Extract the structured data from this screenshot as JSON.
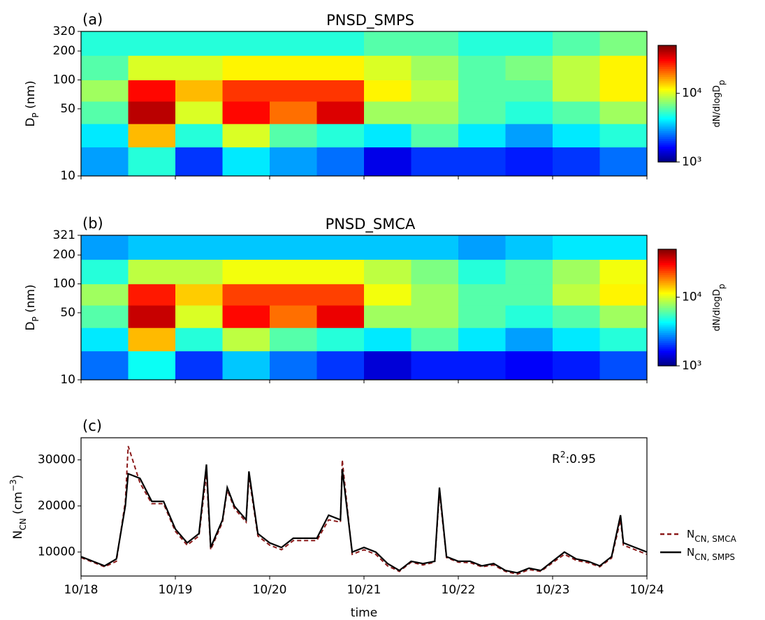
{
  "chart_data": [
    {
      "type": "heatmap",
      "panel_label": "(a)",
      "title": "PNSD_SMPS",
      "ylabel": [
        {
          "text": "D"
        },
        {
          "text": "P",
          "sub": true
        },
        {
          "text": " (nm)"
        }
      ],
      "clabel": [
        {
          "text": "dN/dlogD"
        },
        {
          "text": "p",
          "sub": true
        }
      ],
      "x_edges": [
        18,
        18.5,
        19,
        19.5,
        20,
        20.5,
        21,
        21.5,
        22,
        22.5,
        23,
        23.5,
        24
      ],
      "y_edges": [
        10,
        20,
        35,
        60,
        100,
        180,
        320
      ],
      "values": [
        [
          3000,
          4000,
          6000,
          8000,
          6000,
          5000
        ],
        [
          5000,
          15000,
          40000,
          30000,
          10000,
          5000
        ],
        [
          2000,
          5000,
          10000,
          15000,
          10000,
          5000
        ],
        [
          4000,
          10000,
          30000,
          25000,
          12000,
          5000
        ],
        [
          3000,
          6000,
          20000,
          25000,
          12000,
          5000
        ],
        [
          2500,
          5000,
          35000,
          25000,
          12000,
          5000
        ],
        [
          1500,
          4000,
          8000,
          12000,
          10000,
          6000
        ],
        [
          2000,
          6000,
          8000,
          9000,
          8000,
          6000
        ],
        [
          2000,
          4000,
          6000,
          6000,
          6000,
          5000
        ],
        [
          1800,
          3000,
          5000,
          6000,
          7000,
          5000
        ],
        [
          2000,
          4000,
          6000,
          9000,
          9000,
          6000
        ],
        [
          2500,
          5000,
          8000,
          12000,
          12000,
          7000
        ]
      ],
      "xlim": [
        18,
        24
      ],
      "xticks": [
        18,
        19,
        20,
        21,
        22,
        23,
        24
      ],
      "ylim": [
        10,
        320
      ],
      "yticks": [
        10,
        50,
        100,
        200,
        320
      ],
      "ylog": true,
      "clim": [
        1000,
        50000
      ],
      "clog": true,
      "cticks": [
        {
          "value": 1000,
          "label": "10³"
        },
        {
          "value": 10000,
          "label": "10⁴"
        }
      ],
      "colormap": "jet"
    },
    {
      "type": "heatmap",
      "panel_label": "(b)",
      "title": "PNSD_SMCA",
      "ylabel": [
        {
          "text": "D"
        },
        {
          "text": "P",
          "sub": true
        },
        {
          "text": " (nm)"
        }
      ],
      "clabel": [
        {
          "text": "dN/dlogD"
        },
        {
          "text": "p",
          "sub": true
        }
      ],
      "x_edges": [
        18,
        18.5,
        19,
        19.5,
        20,
        20.5,
        21,
        21.5,
        22,
        22.5,
        23,
        23.5,
        24
      ],
      "y_edges": [
        10,
        20,
        35,
        60,
        100,
        180,
        321
      ],
      "values": [
        [
          2500,
          4000,
          6000,
          8000,
          5000,
          3000
        ],
        [
          4500,
          15000,
          38000,
          28000,
          9000,
          3500
        ],
        [
          2000,
          5000,
          10000,
          14000,
          9000,
          3500
        ],
        [
          3500,
          9000,
          30000,
          24000,
          11000,
          3500
        ],
        [
          2500,
          6000,
          20000,
          24000,
          11000,
          3500
        ],
        [
          2000,
          5000,
          33000,
          24000,
          11000,
          3500
        ],
        [
          1400,
          4000,
          8000,
          11000,
          9000,
          3500
        ],
        [
          1800,
          6000,
          8000,
          8000,
          7000,
          3500
        ],
        [
          1800,
          4000,
          6000,
          6000,
          5000,
          3000
        ],
        [
          1600,
          3000,
          5000,
          6000,
          6000,
          3500
        ],
        [
          1800,
          4000,
          6000,
          9000,
          8000,
          4000
        ],
        [
          2200,
          5000,
          8000,
          12000,
          11000,
          4000
        ]
      ],
      "xlim": [
        18,
        24
      ],
      "xticks": [
        18,
        19,
        20,
        21,
        22,
        23,
        24
      ],
      "ylim": [
        10,
        321
      ],
      "yticks": [
        10,
        50,
        100,
        200,
        321
      ],
      "ylog": true,
      "clim": [
        1000,
        50000
      ],
      "clog": true,
      "cticks": [
        {
          "value": 1000,
          "label": "10³"
        },
        {
          "value": 10000,
          "label": "10⁴"
        }
      ],
      "colormap": "jet"
    },
    {
      "type": "line",
      "panel_label": "(c)",
      "ylabel": [
        {
          "text": "N"
        },
        {
          "text": "CN",
          "sub": true
        },
        {
          "text": " (cm"
        },
        {
          "text": "−3",
          "sup": true
        },
        {
          "text": ")"
        }
      ],
      "xlabel": "time",
      "annotation": [
        {
          "text": "R"
        },
        {
          "text": "2",
          "sup": true
        },
        {
          "text": ":0.95"
        }
      ],
      "x": [
        18,
        18.125,
        18.25,
        18.375,
        18.47,
        18.5,
        18.625,
        18.75,
        18.875,
        19,
        19.125,
        19.25,
        19.33,
        19.375,
        19.5,
        19.55,
        19.625,
        19.75,
        19.78,
        19.875,
        20,
        20.125,
        20.25,
        20.375,
        20.5,
        20.625,
        20.75,
        20.77,
        20.875,
        21,
        21.125,
        21.25,
        21.375,
        21.5,
        21.625,
        21.75,
        21.8,
        21.875,
        22,
        22.125,
        22.25,
        22.375,
        22.5,
        22.625,
        22.75,
        22.875,
        23,
        23.125,
        23.25,
        23.375,
        23.5,
        23.625,
        23.72,
        23.75,
        23.875,
        24
      ],
      "series": [
        {
          "name": [
            {
              "text": "N"
            },
            {
              "text": "CN, SMCA",
              "sub": true
            }
          ],
          "color": "#8b1a1a",
          "dash": true,
          "values": [
            8800,
            7800,
            6800,
            8000,
            21000,
            33000,
            25000,
            20500,
            20500,
            14500,
            11500,
            13500,
            27000,
            10500,
            16500,
            23500,
            19500,
            16500,
            26500,
            13500,
            11500,
            10500,
            12500,
            12500,
            12500,
            17000,
            16500,
            30000,
            9500,
            10500,
            9500,
            7000,
            5800,
            7800,
            7200,
            7800,
            23000,
            8800,
            7800,
            7700,
            6800,
            7200,
            5800,
            5200,
            6200,
            5800,
            7700,
            9500,
            8200,
            7700,
            6800,
            8700,
            17000,
            11500,
            10500,
            9500
          ]
        },
        {
          "name": [
            {
              "text": "N"
            },
            {
              "text": "CN, SMPS",
              "sub": true
            }
          ],
          "color": "#000000",
          "dash": false,
          "values": [
            9000,
            8000,
            7000,
            8500,
            20000,
            27000,
            26000,
            21000,
            21000,
            15000,
            12000,
            14000,
            29000,
            11000,
            17000,
            24000,
            20000,
            17000,
            27500,
            14000,
            12000,
            11000,
            13000,
            13000,
            13000,
            18000,
            17000,
            28000,
            10000,
            11000,
            10000,
            7500,
            6000,
            8000,
            7500,
            8000,
            24000,
            9000,
            8000,
            8000,
            7000,
            7500,
            6000,
            5500,
            6500,
            6000,
            8000,
            10000,
            8500,
            8000,
            7000,
            9000,
            18000,
            12000,
            11000,
            10000
          ]
        }
      ],
      "xlim": [
        18,
        24
      ],
      "xticks": [
        {
          "value": 18,
          "label": "10/18"
        },
        {
          "value": 19,
          "label": "10/19"
        },
        {
          "value": 20,
          "label": "10/20"
        },
        {
          "value": 21,
          "label": "10/21"
        },
        {
          "value": 22,
          "label": "10/22"
        },
        {
          "value": 23,
          "label": "10/23"
        },
        {
          "value": 24,
          "label": "10/24"
        }
      ],
      "ylim": [
        4800,
        34800
      ],
      "yticks": [
        10000,
        20000,
        30000
      ]
    }
  ]
}
